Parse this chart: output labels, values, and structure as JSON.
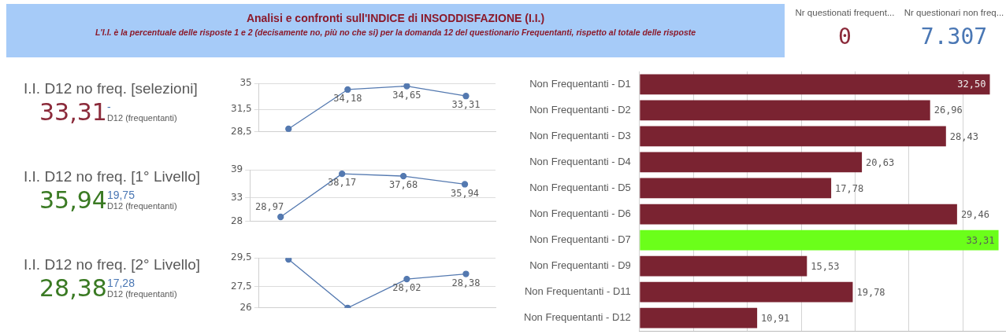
{
  "chart_data": [
    {
      "type": "other",
      "title": "Analisi e confronti sull'INDICE di INSODDISFAZIONE (I.I.)",
      "subtitle": "L'I.I. è la percentuale delle risposte 1 e 2 (decisamente no, più no che si) per la domanda 12 del questionario Frequentanti, rispetto al totale delle risposte"
    },
    {
      "type": "other",
      "title": "Nr questionati frequent...",
      "annotations": [
        "0"
      ],
      "colors": [
        "#8b2a3a"
      ]
    },
    {
      "type": "other",
      "title": "Nr questionari non freq...",
      "annotations": [
        "7.307"
      ],
      "colors": [
        "#4a77b4"
      ]
    },
    {
      "type": "other",
      "title": "I.I. D12 no freq. [selezioni]",
      "annotations": [
        "33,31",
        "-",
        "D12 (frequentanti)"
      ],
      "colors": [
        "#8b2a3a",
        "#4a77b4",
        "#595959"
      ]
    },
    {
      "type": "other",
      "title": "I.I. D12 no freq. [1° Livello]",
      "annotations": [
        "35,94",
        "19,75",
        "D12 (frequentanti)"
      ],
      "colors": [
        "#3a7a23",
        "#4a77b4",
        "#595959"
      ]
    },
    {
      "type": "other",
      "title": "I.I. D12 no freq. [2° Livello]",
      "annotations": [
        "28,38",
        "17,28",
        "D12 (frequentanti)"
      ],
      "colors": [
        "#3a7a23",
        "#4a77b4",
        "#595959"
      ]
    },
    {
      "type": "line",
      "categories": [
        null,
        null,
        null,
        null
      ],
      "series": [
        {
          "color": "#5479b0",
          "values": [
            28.9,
            34.18,
            34.65,
            33.31
          ],
          "value_labels": [
            null,
            "34,18",
            "34,65",
            "33,31"
          ]
        }
      ],
      "ylim": [
        28.5,
        35
      ],
      "yticks": [
        {
          "value": 28.5,
          "label": "28,5"
        },
        {
          "value": 31.5,
          "label": "31,5"
        },
        35
      ],
      "grid": "y",
      "marker": "circle",
      "tick_labels": "y"
    },
    {
      "type": "line",
      "categories": [
        null,
        null,
        null,
        null
      ],
      "series": [
        {
          "color": "#5479b0",
          "values": [
            28.97,
            38.17,
            37.68,
            35.94
          ],
          "value_labels": [
            "28,97",
            "38,17",
            "37,68",
            "35,94"
          ]
        }
      ],
      "ylim": [
        28,
        39
      ],
      "yticks": [
        28,
        33,
        39
      ],
      "grid": "y",
      "marker": "circle",
      "tick_labels": "y"
    },
    {
      "type": "line",
      "categories": [
        null,
        null,
        null,
        null
      ],
      "series": [
        {
          "color": "#5479b0",
          "values": [
            29.4,
            26,
            28.02,
            28.38
          ],
          "value_labels": [
            null,
            null,
            "28,02",
            "28,38"
          ]
        }
      ],
      "ylim": [
        26,
        29.5
      ],
      "yticks": [
        26,
        {
          "value": 27.5,
          "label": "27,5"
        },
        {
          "value": 29.5,
          "label": "29,5"
        }
      ],
      "grid": "y",
      "marker": "circle",
      "tick_labels": "y"
    },
    {
      "type": "bar",
      "orientation": "horizontal",
      "categories": [
        "Non Frequentanti - D1",
        "Non Frequentanti - D2",
        "Non Frequentanti - D3",
        "Non Frequentanti - D4",
        "Non Frequentanti - D5",
        "Non Frequentanti - D6",
        "Non Frequentanti - D7",
        "Non Frequentanti - D9",
        "Non Frequentanti - D11",
        "Non Frequentanti - D12"
      ],
      "values": [
        32.5,
        26.96,
        28.43,
        20.63,
        17.78,
        29.46,
        33.31,
        15.53,
        19.78,
        10.91
      ],
      "colors": [
        "#7a2331",
        "#7a2331",
        "#7a2331",
        "#7a2331",
        "#7a2331",
        "#7a2331",
        "#6bff1a",
        "#7a2331",
        "#7a2331",
        "#7a2331"
      ],
      "value_labels": [
        "32,50",
        "26,96",
        "28,43",
        "20,63",
        "17,78",
        "29,46",
        "33,31",
        "15,53",
        "19,78",
        "10,91"
      ],
      "xlim": [
        0,
        34
      ],
      "xticks": [
        {
          "value": 0,
          "label": null
        },
        {
          "value": 5,
          "label": null
        },
        {
          "value": 10,
          "label": null
        },
        {
          "value": 15,
          "label": null
        },
        {
          "value": 20,
          "label": null
        },
        {
          "value": 25,
          "label": null
        },
        {
          "value": 30,
          "label": null
        }
      ],
      "grid": "x",
      "tick_labels": "y"
    }
  ]
}
